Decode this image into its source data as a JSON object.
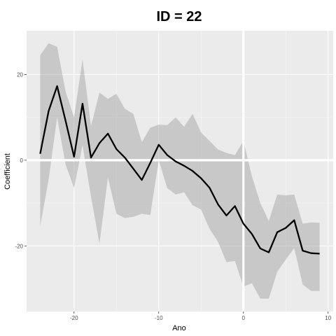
{
  "chart_data": {
    "type": "line",
    "title": "ID = 22",
    "xlabel": "Ano",
    "ylabel": "Coefficient",
    "xlim": [
      -25.6,
      10.6
    ],
    "ylim": [
      -35.3,
      30.2
    ],
    "xticks": [
      -20,
      -10,
      0,
      10
    ],
    "xtick_labels": [
      "-20",
      "-10",
      "0",
      "10"
    ],
    "yticks": [
      -20,
      0,
      20
    ],
    "ytick_labels": [
      "-20",
      "0",
      "20"
    ],
    "highlight_lines": {
      "x": 0,
      "y": 0
    },
    "grid": true,
    "series": [
      {
        "x": [
          -24,
          -23,
          -22,
          -21,
          -20,
          -19,
          -18,
          -17,
          -16,
          -15,
          -14,
          -13,
          -12,
          -11,
          -10,
          -9,
          -8,
          -7,
          -6,
          -5,
          -4,
          -3,
          -2,
          -1,
          0,
          1,
          2,
          3,
          4,
          5,
          6,
          7,
          8,
          9
        ],
        "y": [
          1.5,
          11.5,
          17.3,
          9.2,
          0.8,
          13.2,
          0.6,
          4.0,
          6.2,
          2.6,
          0.6,
          -2.0,
          -4.6,
          -0.6,
          3.6,
          1.2,
          -0.3,
          -1.3,
          -2.5,
          -4.2,
          -6.4,
          -10.3,
          -12.9,
          -10.7,
          -14.8,
          -17.2,
          -20.6,
          -21.5,
          -16.8,
          -15.8,
          -14.0,
          -21.1,
          -21.7,
          -21.8
        ],
        "lower": [
          -15.4,
          -4.5,
          10.0,
          -1.0,
          -6.5,
          3.5,
          -8.5,
          -19.5,
          -4.0,
          -12.5,
          -13.5,
          -13.2,
          -12.5,
          -12.8,
          0.0,
          -6.5,
          -8.0,
          -7.5,
          -10.5,
          -11.5,
          -16.0,
          -19.0,
          -23.8,
          -23.5,
          -29.5,
          -28.7,
          -32.3,
          -32.3,
          -26.0,
          -23.2,
          -20.5,
          -29.0,
          -30.5,
          -30.5
        ],
        "upper": [
          24.5,
          27.3,
          26.5,
          16.0,
          10.0,
          23.5,
          8.0,
          15.8,
          14.3,
          15.5,
          12.0,
          10.8,
          4.2,
          7.6,
          8.3,
          8.2,
          10.0,
          7.8,
          10.8,
          6.5,
          4.5,
          2.5,
          1.7,
          1.2,
          4.5,
          -3.7,
          -10.0,
          -14.2,
          -8.0,
          -8.2,
          -8.0,
          -14.8,
          -14.5,
          -14.6
        ]
      }
    ]
  }
}
